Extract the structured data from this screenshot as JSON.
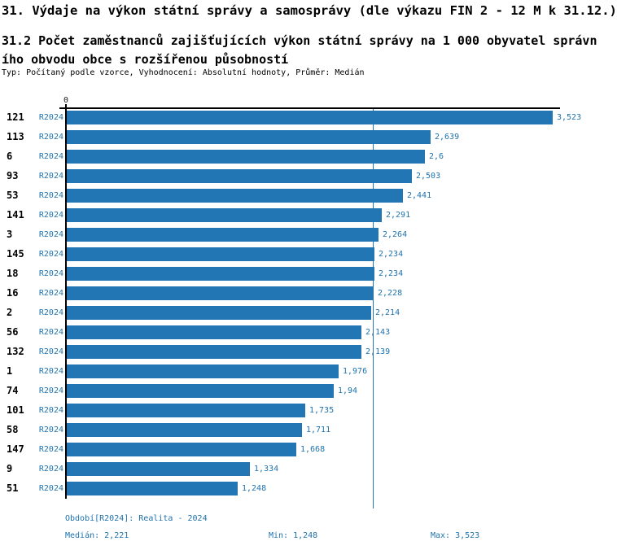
{
  "header": {
    "title": "31. Výdaje na výkon státní správy a samosprávy (dle výkazu FIN 2 - 12 M k 31.12.)",
    "subtitle_line1": "31.2 Počet zaměstnanců zajišťujících výkon státní správy na 1 000 obyvatel správn",
    "subtitle_line2": "ího obvodu obce s rozšířenou působností",
    "meta": "Typ: Počítaný podle vzorce, Vyhodnocení: Absolutní hodnoty, Průměr: Medián"
  },
  "chart_data": {
    "type": "bar",
    "orientation": "horizontal",
    "title": "31.2 Počet zaměstnanců zajišťujících výkon státní správy na 1 000 obyvatel správního obvodu obce s rozšířenou působností",
    "axis_zero_label": "0",
    "series_label": "R2024",
    "categories": [
      "121",
      "113",
      "6",
      "93",
      "53",
      "141",
      "3",
      "145",
      "18",
      "16",
      "2",
      "56",
      "132",
      "1",
      "74",
      "101",
      "58",
      "147",
      "9",
      "51"
    ],
    "values": [
      3.523,
      2.639,
      2.6,
      2.503,
      2.441,
      2.291,
      2.264,
      2.234,
      2.234,
      2.228,
      2.214,
      2.143,
      2.139,
      1.976,
      1.94,
      1.735,
      1.711,
      1.668,
      1.334,
      1.248
    ],
    "value_labels": [
      "3,523",
      "2,639",
      "2,6",
      "2,503",
      "2,441",
      "2,291",
      "2,264",
      "2,234",
      "2,234",
      "2,228",
      "2,214",
      "2,143",
      "2,139",
      "1,976",
      "1,94",
      "1,735",
      "1,711",
      "1,668",
      "1,334",
      "1,248"
    ],
    "xlim": [
      0,
      3.6
    ],
    "median_value": 2.221,
    "grid": false,
    "legend_position": "none"
  },
  "footer": {
    "period": "Období[R2024]: Realita - 2024",
    "median": "Medián: 2,221",
    "min": "Min: 1,248",
    "max": "Max: 3,523"
  },
  "colors": {
    "bar": "#2376b4",
    "text_blue": "#1f72ac",
    "axis": "#000000"
  }
}
